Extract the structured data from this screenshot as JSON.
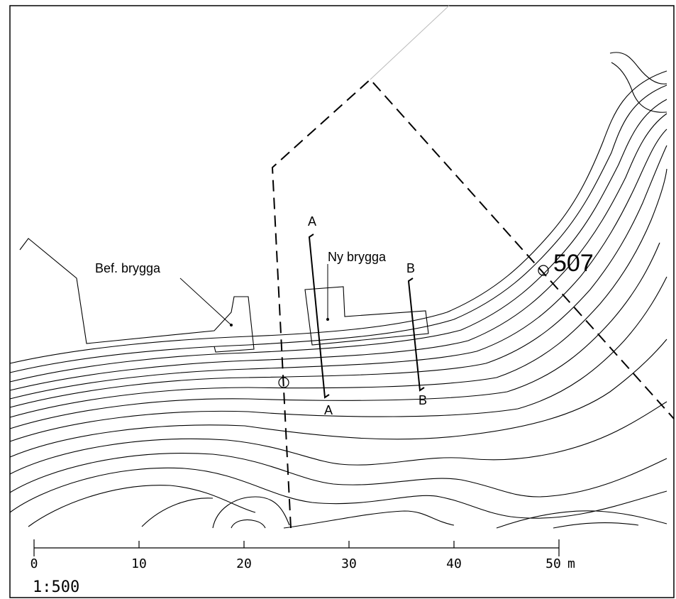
{
  "map": {
    "labels": {
      "existing_pier": "Bef. brygga",
      "new_pier": "Ny brygga",
      "section_a_top": "A",
      "section_a_bottom": "A",
      "section_b_top": "B",
      "section_b_bottom": "B",
      "point_number": "507"
    },
    "scale_bar": {
      "ticks": [
        "0",
        "10",
        "20",
        "30",
        "40",
        "50"
      ],
      "unit": "m",
      "ratio": "1:500"
    },
    "colors": {
      "line": "#000000",
      "background": "#ffffff",
      "extension_line": "#bbbbbb"
    }
  }
}
